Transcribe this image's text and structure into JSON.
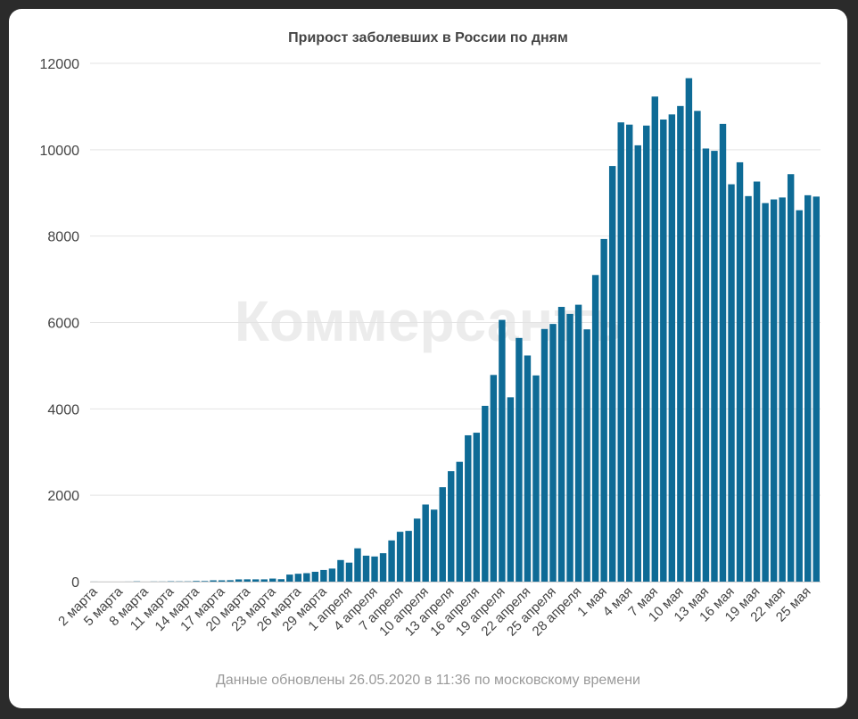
{
  "chart_data": {
    "type": "bar",
    "title": "Прирост заболевших в России по дням",
    "xlabel": "",
    "ylabel": "",
    "ylim": [
      0,
      12000
    ],
    "yticks": [
      0,
      2000,
      4000,
      6000,
      8000,
      10000,
      12000
    ],
    "grid": true,
    "legend": "none",
    "bar_color": "#0e6b96",
    "categories": [
      "2 марта",
      "3 марта",
      "4 марта",
      "5 марта",
      "6 марта",
      "7 марта",
      "8 марта",
      "9 марта",
      "10 марта",
      "11 марта",
      "12 марта",
      "13 марта",
      "14 марта",
      "15 марта",
      "16 марта",
      "17 марта",
      "18 марта",
      "19 марта",
      "20 марта",
      "21 марта",
      "22 марта",
      "23 марта",
      "24 марта",
      "25 марта",
      "26 марта",
      "27 марта",
      "28 марта",
      "29 марта",
      "30 марта",
      "31 марта",
      "1 апреля",
      "2 апреля",
      "3 апреля",
      "4 апреля",
      "5 апреля",
      "6 апреля",
      "7 апреля",
      "8 апреля",
      "9 апреля",
      "10 апреля",
      "11 апреля",
      "12 апреля",
      "13 апреля",
      "14 апреля",
      "15 апреля",
      "16 апреля",
      "17 апреля",
      "18 апреля",
      "19 апреля",
      "20 апреля",
      "21 апреля",
      "22 апреля",
      "23 апреля",
      "24 апреля",
      "25 апреля",
      "26 апреля",
      "27 апреля",
      "28 апреля",
      "29 апреля",
      "30 апреля",
      "1 мая",
      "2 мая",
      "3 мая",
      "4 мая",
      "5 мая",
      "6 мая",
      "7 мая",
      "8 мая",
      "9 мая",
      "10 мая",
      "11 мая",
      "12 мая",
      "13 мая",
      "14 мая",
      "15 мая",
      "16 мая",
      "17 мая",
      "18 мая",
      "19 мая",
      "20 мая",
      "21 мая",
      "22 мая",
      "23 мая",
      "24 мая",
      "25 мая",
      "26 мая"
    ],
    "tick_labels": [
      "2 марта",
      "5 марта",
      "8 марта",
      "11 марта",
      "14 марта",
      "17 марта",
      "20 марта",
      "23 марта",
      "26 марта",
      "29 марта",
      "1 апреля",
      "4 апреля",
      "7 апреля",
      "10 апреля",
      "13 апреля",
      "16 апреля",
      "19 апреля",
      "22 апреля",
      "25 апреля",
      "28 апреля",
      "1 мая",
      "4 мая",
      "7 мая",
      "10 мая",
      "13 мая",
      "16 мая",
      "19 мая",
      "22 мая",
      "25 мая"
    ],
    "values": [
      1,
      0,
      0,
      0,
      1,
      6,
      0,
      3,
      3,
      8,
      6,
      6,
      15,
      14,
      30,
      30,
      33,
      52,
      54,
      53,
      53,
      71,
      57,
      163,
      182,
      196,
      228,
      270,
      302,
      500,
      440,
      771,
      601,
      582,
      658,
      954,
      1154,
      1175,
      1459,
      1786,
      1667,
      2186,
      2558,
      2774,
      3388,
      3448,
      4070,
      4785,
      6060,
      4268,
      5642,
      5236,
      4774,
      5849,
      5966,
      6361,
      6198,
      6411,
      5841,
      7099,
      7933,
      9623,
      10633,
      10581,
      10102,
      10559,
      11231,
      10699,
      10817,
      11012,
      11656,
      10899,
      10028,
      9974,
      10598,
      9200,
      9709,
      8926,
      9263,
      8764,
      8849,
      8894,
      9434,
      8599,
      8946,
      8915
    ]
  },
  "footer": {
    "note": "Данные обновлены 26.05.2020 в 11:36 по московскому времени"
  },
  "watermark": "Коммерсантъ"
}
